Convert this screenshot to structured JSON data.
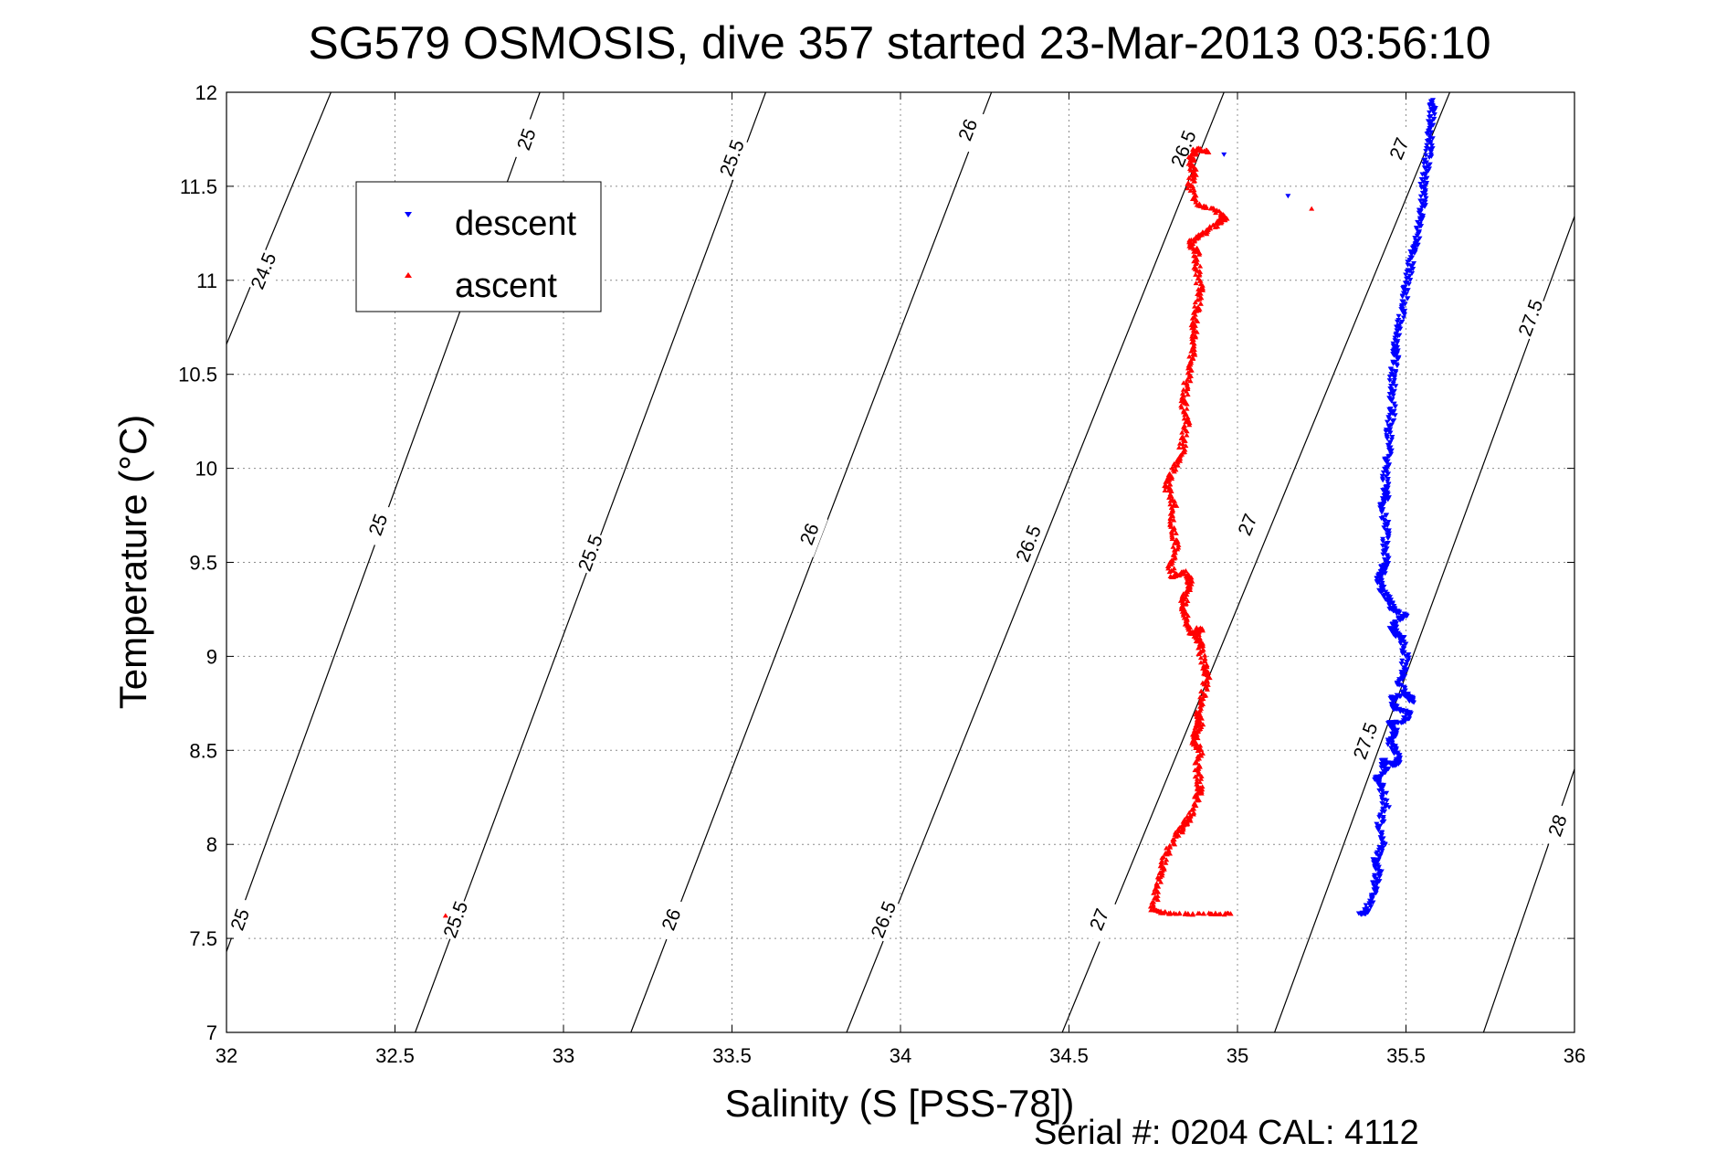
{
  "chart_data": {
    "type": "scatter",
    "title": "SG579 OSMOSIS, dive 357 started 23-Mar-2013 03:56:10",
    "xlabel": "Salinity (S [PSS-78])",
    "ylabel": "Temperature (°C)",
    "xlim": [
      32,
      36
    ],
    "ylim": [
      7,
      12
    ],
    "x_ticks": [
      "32",
      "32.5",
      "33",
      "33.5",
      "34",
      "34.5",
      "35",
      "35.5",
      "36"
    ],
    "y_ticks": [
      "7",
      "7.5",
      "8",
      "8.5",
      "9",
      "9.5",
      "10",
      "10.5",
      "11",
      "11.5",
      "12"
    ],
    "grid": true,
    "legend_position": "top-left",
    "footer": "Serial #: 0204  CAL: 4112",
    "contours": [
      {
        "label": "24.5",
        "points": [
          [
            32.0,
            10.66
          ],
          [
            32.31,
            12.0
          ]
        ],
        "label_at": [
          32.11,
          11.05
        ]
      },
      {
        "label": "25",
        "points": [
          [
            32.0,
            7.43
          ],
          [
            32.93,
            12.0
          ]
        ],
        "label_at": [
          32.04,
          7.6
        ]
      },
      {
        "label": "25",
        "points": [
          [
            32.93,
            12.0
          ],
          [
            32.0,
            7.43
          ]
        ],
        "label_at": [
          32.45,
          9.7
        ]
      },
      {
        "label": "25",
        "points": [
          [
            32.93,
            12.0
          ],
          [
            32.0,
            7.43
          ]
        ],
        "label_at": [
          32.89,
          11.75
        ]
      },
      {
        "label": "25.5",
        "points": [
          [
            32.56,
            7.0
          ],
          [
            33.6,
            12.0
          ]
        ],
        "label_at": [
          32.68,
          7.6
        ]
      },
      {
        "label": "25.5",
        "points": [
          [
            32.56,
            7.0
          ],
          [
            33.6,
            12.0
          ]
        ],
        "label_at": [
          33.08,
          9.55
        ]
      },
      {
        "label": "25.5",
        "points": [
          [
            32.56,
            7.0
          ],
          [
            33.6,
            12.0
          ]
        ],
        "label_at": [
          33.5,
          11.65
        ]
      },
      {
        "label": "26",
        "points": [
          [
            33.2,
            7.0
          ],
          [
            34.27,
            12.0
          ]
        ],
        "label_at": [
          33.32,
          7.6
        ]
      },
      {
        "label": "26",
        "points": [
          [
            33.2,
            7.0
          ],
          [
            34.27,
            12.0
          ]
        ],
        "label_at": [
          33.73,
          9.65
        ]
      },
      {
        "label": "26",
        "points": [
          [
            33.2,
            7.0
          ],
          [
            34.27,
            12.0
          ]
        ],
        "label_at": [
          34.2,
          11.8
        ]
      },
      {
        "label": "26.5",
        "points": [
          [
            33.84,
            7.0
          ],
          [
            34.96,
            12.0
          ]
        ],
        "label_at": [
          33.95,
          7.6
        ]
      },
      {
        "label": "26.5",
        "points": [
          [
            33.84,
            7.0
          ],
          [
            34.96,
            12.0
          ]
        ],
        "label_at": [
          34.38,
          9.6
        ]
      },
      {
        "label": "26.5",
        "points": [
          [
            33.84,
            7.0
          ],
          [
            34.96,
            12.0
          ]
        ],
        "label_at": [
          34.84,
          11.7
        ]
      },
      {
        "label": "27",
        "points": [
          [
            34.48,
            7.0
          ],
          [
            35.63,
            12.0
          ]
        ],
        "label_at": [
          34.59,
          7.6
        ]
      },
      {
        "label": "27",
        "points": [
          [
            34.48,
            7.0
          ],
          [
            35.63,
            12.0
          ]
        ],
        "label_at": [
          35.03,
          9.7
        ]
      },
      {
        "label": "27",
        "points": [
          [
            34.48,
            7.0
          ],
          [
            35.63,
            12.0
          ]
        ],
        "label_at": [
          35.48,
          11.7
        ]
      },
      {
        "label": "27.5",
        "points": [
          [
            35.11,
            7.0
          ],
          [
            36.0,
            11.34
          ]
        ],
        "label_at": [
          35.38,
          8.55
        ]
      },
      {
        "label": "27.5",
        "points": [
          [
            35.11,
            7.0
          ],
          [
            36.0,
            11.34
          ]
        ],
        "label_at": [
          35.87,
          10.8
        ]
      },
      {
        "label": "28",
        "points": [
          [
            35.73,
            7.0
          ],
          [
            36.0,
            8.4
          ]
        ],
        "label_at": [
          35.95,
          8.1
        ]
      }
    ],
    "series": [
      {
        "name": "descent",
        "color": "#0000ff",
        "marker": "triangle-down",
        "points": [
          [
            35.37,
            7.63
          ],
          [
            35.38,
            7.64
          ],
          [
            35.4,
            7.72
          ],
          [
            35.41,
            7.8
          ],
          [
            35.42,
            7.86
          ],
          [
            35.41,
            7.92
          ],
          [
            35.43,
            8.0
          ],
          [
            35.42,
            8.1
          ],
          [
            35.44,
            8.2
          ],
          [
            35.43,
            8.3
          ],
          [
            35.41,
            8.35
          ],
          [
            35.44,
            8.4
          ],
          [
            35.43,
            8.45
          ],
          [
            35.46,
            8.42
          ],
          [
            35.48,
            8.45
          ],
          [
            35.47,
            8.5
          ],
          [
            35.45,
            8.55
          ],
          [
            35.47,
            8.6
          ],
          [
            35.45,
            8.65
          ],
          [
            35.49,
            8.65
          ],
          [
            35.51,
            8.7
          ],
          [
            35.47,
            8.72
          ],
          [
            35.46,
            8.78
          ],
          [
            35.5,
            8.8
          ],
          [
            35.52,
            8.76
          ],
          [
            35.48,
            8.85
          ],
          [
            35.49,
            8.9
          ],
          [
            35.5,
            9.0
          ],
          [
            35.49,
            9.1
          ],
          [
            35.47,
            9.12
          ],
          [
            35.46,
            9.15
          ],
          [
            35.48,
            9.2
          ],
          [
            35.5,
            9.22
          ],
          [
            35.46,
            9.25
          ],
          [
            35.45,
            9.3
          ],
          [
            35.43,
            9.35
          ],
          [
            35.42,
            9.4
          ],
          [
            35.43,
            9.45
          ],
          [
            35.44,
            9.5
          ],
          [
            35.44,
            9.6
          ],
          [
            35.44,
            9.7
          ],
          [
            35.43,
            9.8
          ],
          [
            35.44,
            9.85
          ],
          [
            35.44,
            9.9
          ],
          [
            35.44,
            10.0
          ],
          [
            35.45,
            10.1
          ],
          [
            35.45,
            10.2
          ],
          [
            35.46,
            10.3
          ],
          [
            35.46,
            10.4
          ],
          [
            35.46,
            10.5
          ],
          [
            35.47,
            10.6
          ],
          [
            35.47,
            10.65
          ],
          [
            35.48,
            10.75
          ],
          [
            35.49,
            10.85
          ],
          [
            35.5,
            10.95
          ],
          [
            35.51,
            11.05
          ],
          [
            35.52,
            11.15
          ],
          [
            35.53,
            11.2
          ],
          [
            35.54,
            11.3
          ],
          [
            35.55,
            11.4
          ],
          [
            35.55,
            11.5
          ],
          [
            35.56,
            11.6
          ],
          [
            35.57,
            11.7
          ],
          [
            35.57,
            11.8
          ],
          [
            35.58,
            11.9
          ],
          [
            35.58,
            11.96
          ],
          [
            34.96,
            11.67
          ],
          [
            35.15,
            11.45
          ]
        ]
      },
      {
        "name": "ascent",
        "color": "#ff0000",
        "marker": "triangle-up",
        "points": [
          [
            34.98,
            7.63
          ],
          [
            34.9,
            7.63
          ],
          [
            34.8,
            7.63
          ],
          [
            34.75,
            7.65
          ],
          [
            34.76,
            7.75
          ],
          [
            34.77,
            7.85
          ],
          [
            34.79,
            7.95
          ],
          [
            34.82,
            8.05
          ],
          [
            34.84,
            8.1
          ],
          [
            34.86,
            8.15
          ],
          [
            34.88,
            8.25
          ],
          [
            34.89,
            8.3
          ],
          [
            34.88,
            8.4
          ],
          [
            34.89,
            8.5
          ],
          [
            34.87,
            8.55
          ],
          [
            34.88,
            8.6
          ],
          [
            34.89,
            8.65
          ],
          [
            34.88,
            8.7
          ],
          [
            34.9,
            8.8
          ],
          [
            34.91,
            8.9
          ],
          [
            34.9,
            8.95
          ],
          [
            34.89,
            9.05
          ],
          [
            34.88,
            9.1
          ],
          [
            34.89,
            9.15
          ],
          [
            34.86,
            9.12
          ],
          [
            34.85,
            9.2
          ],
          [
            34.84,
            9.28
          ],
          [
            34.85,
            9.35
          ],
          [
            34.86,
            9.4
          ],
          [
            34.84,
            9.45
          ],
          [
            34.81,
            9.42
          ],
          [
            34.8,
            9.5
          ],
          [
            34.82,
            9.6
          ],
          [
            34.8,
            9.7
          ],
          [
            34.81,
            9.8
          ],
          [
            34.79,
            9.9
          ],
          [
            34.8,
            9.95
          ],
          [
            34.83,
            10.05
          ],
          [
            34.84,
            10.15
          ],
          [
            34.85,
            10.25
          ],
          [
            34.84,
            10.35
          ],
          [
            34.85,
            10.45
          ],
          [
            34.86,
            10.55
          ],
          [
            34.87,
            10.65
          ],
          [
            34.87,
            10.75
          ],
          [
            34.88,
            10.85
          ],
          [
            34.89,
            10.95
          ],
          [
            34.88,
            11.05
          ],
          [
            34.88,
            11.15
          ],
          [
            34.86,
            11.2
          ],
          [
            34.9,
            11.25
          ],
          [
            34.94,
            11.3
          ],
          [
            34.96,
            11.33
          ],
          [
            34.93,
            11.38
          ],
          [
            34.88,
            11.4
          ],
          [
            34.86,
            11.5
          ],
          [
            34.87,
            11.58
          ],
          [
            34.86,
            11.65
          ],
          [
            34.88,
            11.7
          ],
          [
            34.91,
            11.68
          ],
          [
            35.22,
            11.38
          ],
          [
            32.65,
            7.62
          ]
        ]
      }
    ]
  }
}
